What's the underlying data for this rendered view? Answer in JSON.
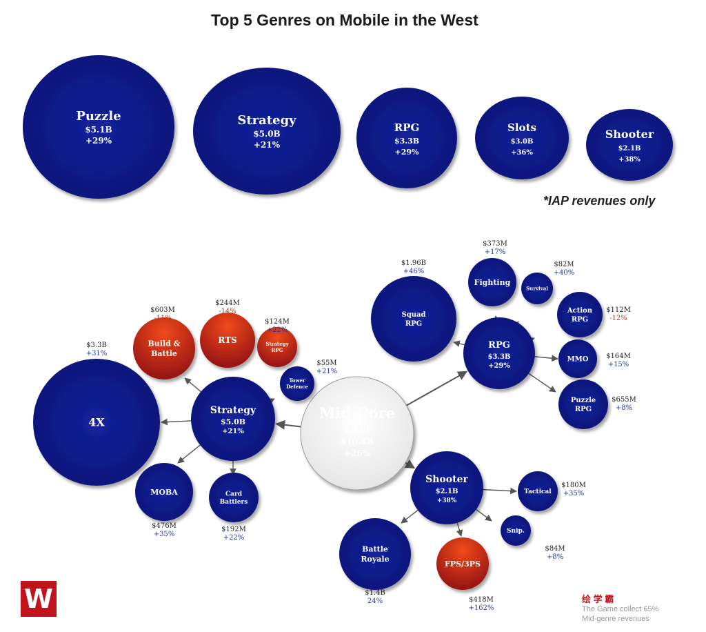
{
  "title": "Top 5 Genres on Mobile in the West",
  "note": "*IAP revenues only",
  "colors": {
    "navy": "#0d1b8e",
    "red": "#c0211b",
    "white": "#ffffff",
    "arrow": "#555555",
    "neg": "#b23a1a",
    "pos": "#2233aa"
  },
  "top_genres": [
    {
      "name": "Puzzle",
      "value": "$5.1B",
      "growth": "+29%"
    },
    {
      "name": "Strategy",
      "value": "$5.0B",
      "growth": "+21%"
    },
    {
      "name": "RPG",
      "value": "$3.3B",
      "growth": "+29%"
    },
    {
      "name": "Slots",
      "value": "$3.0B",
      "growth": "+36%"
    },
    {
      "name": "Shooter",
      "value": "$2.1B",
      "growth": "+38%"
    }
  ],
  "center": {
    "name": "Mid-Core",
    "year": "2020",
    "value": "$10.4B",
    "growth": "+26%"
  },
  "hubs": [
    {
      "id": "strategy",
      "name": "Strategy",
      "value": "$5.0B",
      "growth": "+21%"
    },
    {
      "id": "rpg",
      "name": "RPG",
      "value": "$3.3B",
      "growth": "+29%"
    },
    {
      "id": "shooter",
      "name": "Shooter",
      "value": "$2.1B",
      "growth": "+38%"
    }
  ],
  "subgenres": [
    {
      "id": "4x",
      "parent": "strategy",
      "lines": [
        "4X"
      ],
      "amount": "$3.3B",
      "growth": "+31%",
      "color": "navy"
    },
    {
      "id": "build",
      "parent": "strategy",
      "lines": [
        "Build &",
        "Battle"
      ],
      "amount": "$603M",
      "growth": "-11%",
      "color": "red"
    },
    {
      "id": "rts",
      "parent": "strategy",
      "lines": [
        "RTS"
      ],
      "amount": "$244M",
      "growth": "-14%",
      "color": "red"
    },
    {
      "id": "stratrpg",
      "parent": "strategy",
      "lines": [
        "Strategy",
        "RPG"
      ],
      "amount": "$124M",
      "growth": "+22%",
      "color": "red"
    },
    {
      "id": "tower",
      "parent": "strategy",
      "lines": [
        "Tower",
        "Defence"
      ],
      "amount": "$55M",
      "growth": "+21%",
      "color": "navy"
    },
    {
      "id": "moba",
      "parent": "strategy",
      "lines": [
        "MOBA"
      ],
      "amount": "$476M",
      "growth": "+35%",
      "color": "navy"
    },
    {
      "id": "card",
      "parent": "strategy",
      "lines": [
        "Card",
        "Battlers"
      ],
      "amount": "$192M",
      "growth": "+22%",
      "color": "navy"
    },
    {
      "id": "squad",
      "parent": "rpg",
      "lines": [
        "Squad",
        "RPG"
      ],
      "amount": "$1.96B",
      "growth": "+46%",
      "color": "navy"
    },
    {
      "id": "fighting",
      "parent": "rpg",
      "lines": [
        "Fighting"
      ],
      "amount": "$373M",
      "growth": "+17%",
      "color": "navy"
    },
    {
      "id": "survival",
      "parent": "rpg",
      "lines": [
        "Survival"
      ],
      "amount": "$82M",
      "growth": "+40%",
      "color": "navy"
    },
    {
      "id": "action",
      "parent": "rpg",
      "lines": [
        "Action",
        "RPG"
      ],
      "amount": "$112M",
      "growth": "-12%",
      "color": "navy"
    },
    {
      "id": "mmo",
      "parent": "rpg",
      "lines": [
        "MMO"
      ],
      "amount": "$164M",
      "growth": "+15%",
      "color": "navy"
    },
    {
      "id": "puzzlerpg",
      "parent": "rpg",
      "lines": [
        "Puzzle",
        "RPG"
      ],
      "amount": "$655M",
      "growth": "+8%",
      "color": "navy"
    },
    {
      "id": "tactical",
      "parent": "shooter",
      "lines": [
        "Tactical"
      ],
      "amount": "$180M",
      "growth": "+35%",
      "color": "navy"
    },
    {
      "id": "snip",
      "parent": "shooter",
      "lines": [
        "Snip."
      ],
      "amount": "$84M",
      "growth": "+8%",
      "color": "navy"
    },
    {
      "id": "fps",
      "parent": "shooter",
      "lines": [
        "FPS/3PS"
      ],
      "amount": "$418M",
      "growth": "+162%",
      "color": "red"
    },
    {
      "id": "battle",
      "parent": "shooter",
      "lines": [
        "Battle",
        "Royale"
      ],
      "amount": "$1.4B",
      "growth": "24%",
      "color": "navy"
    }
  ],
  "watermark": {
    "brand": "绘 学 霸",
    "line1": "The Game collect 65%",
    "line2": "Mid-genre revenues"
  },
  "logo_letter": "W"
}
